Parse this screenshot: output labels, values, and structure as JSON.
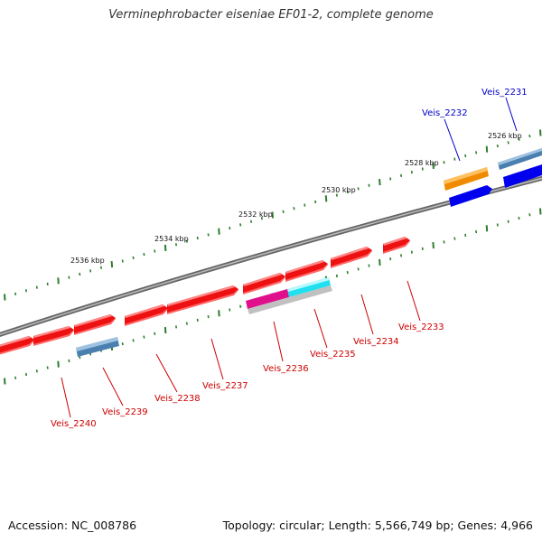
{
  "title": "Verminephrobacter eiseniae EF01-2, complete genome",
  "footer": {
    "accession": "Accession: NC_008786",
    "info": "Topology: circular; Length: 5,566,749 bp; Genes: 4,966"
  },
  "kbp_labels": [
    "2526 kbp",
    "2528 kbp",
    "2530 kbp",
    "2532 kbp",
    "2534 kbp",
    "2536 kbp"
  ],
  "colors": {
    "backbone": "#808080",
    "ticks": "#2e7d2e",
    "cds": "#ee1111",
    "steel": "#4a7fb0",
    "orange": "#f08a00",
    "blue": "#0000ee",
    "magenta": "#e0108c",
    "cyan": "#20e0f0",
    "gray": "#c0c0c0",
    "label_red": "#cc0000",
    "label_blue": "#0000cc"
  },
  "genes": [
    {
      "name": "Veis_2231",
      "color": "blue"
    },
    {
      "name": "Veis_2232",
      "color": "blue"
    },
    {
      "name": "Veis_2233",
      "color": "red"
    },
    {
      "name": "Veis_2234",
      "color": "red"
    },
    {
      "name": "Veis_2235",
      "color": "red"
    },
    {
      "name": "Veis_2236",
      "color": "red"
    },
    {
      "name": "Veis_2237",
      "color": "red"
    },
    {
      "name": "Veis_2238",
      "color": "red"
    },
    {
      "name": "Veis_2239",
      "color": "red"
    },
    {
      "name": "Veis_2240",
      "color": "red"
    }
  ]
}
